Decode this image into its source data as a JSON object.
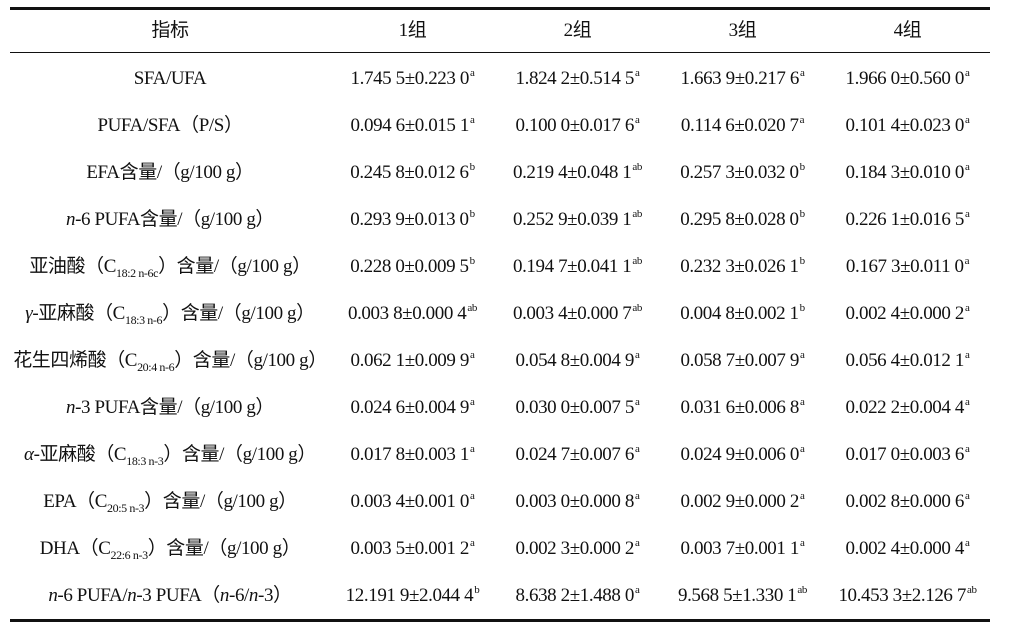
{
  "table": {
    "header": [
      "指标",
      "1组",
      "2组",
      "3组",
      "4组"
    ],
    "rows": [
      {
        "label": [
          {
            "text": "SFA/UFA"
          }
        ],
        "cells": [
          {
            "value": "1.745 5±0.223 0",
            "sup": "a"
          },
          {
            "value": "1.824 2±0.514 5",
            "sup": "a"
          },
          {
            "value": "1.663 9±0.217 6",
            "sup": "a"
          },
          {
            "value": "1.966 0±0.560 0",
            "sup": "a"
          }
        ]
      },
      {
        "label": [
          {
            "text": "PUFA/SFA（P/S）"
          }
        ],
        "cells": [
          {
            "value": "0.094 6±0.015 1",
            "sup": "a"
          },
          {
            "value": "0.100 0±0.017 6",
            "sup": "a"
          },
          {
            "value": "0.114 6±0.020 7",
            "sup": "a"
          },
          {
            "value": "0.101 4±0.023 0",
            "sup": "a"
          }
        ]
      },
      {
        "label": [
          {
            "text": "EFA含量/（g/100 g）"
          }
        ],
        "cells": [
          {
            "value": "0.245 8±0.012 6",
            "sup": "b"
          },
          {
            "value": "0.219 4±0.048 1",
            "sup": "ab"
          },
          {
            "value": "0.257 3±0.032 0",
            "sup": "b"
          },
          {
            "value": "0.184 3±0.010 0",
            "sup": "a"
          }
        ]
      },
      {
        "label": [
          {
            "text": "n",
            "style": "italic"
          },
          {
            "text": "-6 PUFA含量/（g/100 g）"
          }
        ],
        "cells": [
          {
            "value": "0.293 9±0.013 0",
            "sup": "b"
          },
          {
            "value": "0.252 9±0.039 1",
            "sup": "ab"
          },
          {
            "value": "0.295 8±0.028 0",
            "sup": "b"
          },
          {
            "value": "0.226 1±0.016 5",
            "sup": "a"
          }
        ]
      },
      {
        "label": [
          {
            "text": "亚油酸（C"
          },
          {
            "text": "18:2 n-6c",
            "style": "sub"
          },
          {
            "text": "）含量/（g/100 g）"
          }
        ],
        "cells": [
          {
            "value": "0.228 0±0.009 5",
            "sup": "b"
          },
          {
            "value": "0.194 7±0.041 1",
            "sup": "ab"
          },
          {
            "value": "0.232 3±0.026 1",
            "sup": "b"
          },
          {
            "value": "0.167 3±0.011 0",
            "sup": "a"
          }
        ]
      },
      {
        "label": [
          {
            "text": "γ",
            "style": "italic"
          },
          {
            "text": "-亚麻酸（C"
          },
          {
            "text": "18:3 n-6",
            "style": "sub"
          },
          {
            "text": "）含量/（g/100 g）"
          }
        ],
        "cells": [
          {
            "value": "0.003 8±0.000 4",
            "sup": "ab"
          },
          {
            "value": "0.003 4±0.000 7",
            "sup": "ab"
          },
          {
            "value": "0.004 8±0.002 1",
            "sup": "b"
          },
          {
            "value": "0.002 4±0.000 2",
            "sup": "a"
          }
        ]
      },
      {
        "label": [
          {
            "text": "花生四烯酸（C"
          },
          {
            "text": "20:4 n-6",
            "style": "sub"
          },
          {
            "text": "）含量/（g/100 g）"
          }
        ],
        "cells": [
          {
            "value": "0.062 1±0.009 9",
            "sup": "a"
          },
          {
            "value": "0.054 8±0.004 9",
            "sup": "a"
          },
          {
            "value": "0.058 7±0.007 9",
            "sup": "a"
          },
          {
            "value": "0.056 4±0.012 1",
            "sup": "a"
          }
        ]
      },
      {
        "label": [
          {
            "text": "n",
            "style": "italic"
          },
          {
            "text": "-3 PUFA含量/（g/100 g）"
          }
        ],
        "cells": [
          {
            "value": "0.024 6±0.004 9",
            "sup": "a"
          },
          {
            "value": "0.030 0±0.007 5",
            "sup": "a"
          },
          {
            "value": "0.031 6±0.006 8",
            "sup": "a"
          },
          {
            "value": "0.022 2±0.004 4",
            "sup": "a"
          }
        ]
      },
      {
        "label": [
          {
            "text": "α",
            "style": "italic"
          },
          {
            "text": "-亚麻酸（C"
          },
          {
            "text": "18:3 n-3",
            "style": "sub"
          },
          {
            "text": "）含量/（g/100 g）"
          }
        ],
        "cells": [
          {
            "value": "0.017 8±0.003 1",
            "sup": "a"
          },
          {
            "value": "0.024 7±0.007 6",
            "sup": "a"
          },
          {
            "value": "0.024 9±0.006 0",
            "sup": "a"
          },
          {
            "value": "0.017 0±0.003 6",
            "sup": "a"
          }
        ]
      },
      {
        "label": [
          {
            "text": "EPA（C"
          },
          {
            "text": "20:5 n-3",
            "style": "sub"
          },
          {
            "text": "）含量/（g/100 g）"
          }
        ],
        "cells": [
          {
            "value": "0.003 4±0.001 0",
            "sup": "a"
          },
          {
            "value": "0.003 0±0.000 8",
            "sup": "a"
          },
          {
            "value": "0.002 9±0.000 2",
            "sup": "a"
          },
          {
            "value": "0.002 8±0.000 6",
            "sup": "a"
          }
        ]
      },
      {
        "label": [
          {
            "text": "DHA（C"
          },
          {
            "text": "22:6 n-3",
            "style": "sub"
          },
          {
            "text": "）含量/（g/100 g）"
          }
        ],
        "cells": [
          {
            "value": "0.003 5±0.001 2",
            "sup": "a"
          },
          {
            "value": "0.002 3±0.000 2",
            "sup": "a"
          },
          {
            "value": "0.003 7±0.001 1",
            "sup": "a"
          },
          {
            "value": "0.002 4±0.000 4",
            "sup": "a"
          }
        ]
      },
      {
        "label": [
          {
            "text": "n",
            "style": "italic"
          },
          {
            "text": "-6 PUFA/"
          },
          {
            "text": "n",
            "style": "italic"
          },
          {
            "text": "-3 PUFA（"
          },
          {
            "text": "n",
            "style": "italic"
          },
          {
            "text": "-6/"
          },
          {
            "text": "n",
            "style": "italic"
          },
          {
            "text": "-3）"
          }
        ],
        "cells": [
          {
            "value": "12.191 9±2.044 4",
            "sup": "b"
          },
          {
            "value": "8.638 2±1.488 0",
            "sup": "a"
          },
          {
            "value": "9.568 5±1.330 1",
            "sup": "ab"
          },
          {
            "value": "10.453 3±2.126 7",
            "sup": "ab"
          }
        ]
      }
    ]
  }
}
